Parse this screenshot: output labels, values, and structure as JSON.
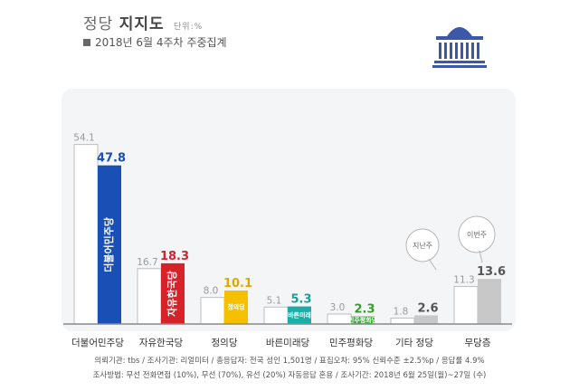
{
  "header": {
    "title_prefix": "정당",
    "title_main": "지지도",
    "unit": "단위:%",
    "subtitle": "2018년 6월 4주차 주중집계"
  },
  "footnotes": {
    "line1": "의뢰기관: tbs / 조사기관: 리얼미터 / 총응답자: 전국 성인 1,501명 / 표집오차: 95% 신뢰수준 ±2.5%p / 응답률 4.9%",
    "line2": "조사방법: 무선 전화면접 (10%), 무선 (70%), 유선 (20%) 자동응답 혼용 / 조사기간: 2018년 6월 25일(월)~27일 (수)"
  },
  "colors": {
    "prev": "#ffffff",
    "prev_border": "#bdbdbd",
    "label_prev": "#9a9a9a"
  },
  "chart_data": {
    "type": "bar",
    "categories": [
      "더불어민주당",
      "자유한국당",
      "정의당",
      "바른미래당",
      "민주평화당",
      "기타 정당",
      "무당층"
    ],
    "series": [
      {
        "values": [
          54.1,
          16.7,
          8.0,
          5.1,
          3.0,
          1.8,
          11.3
        ]
      },
      {
        "values": [
          47.8,
          18.3,
          10.1,
          5.3,
          2.3,
          2.6,
          13.6
        ],
        "colors": [
          "#1a4fb5",
          "#d6232a",
          "#f5c000",
          "#1aaea8",
          "#3cae3a",
          "#c8c8c8",
          "#c8c8c8"
        ],
        "label_colors": [
          "#1a4fb5",
          "#d6232a",
          "#e0a800",
          "#1a9e98",
          "#3a9a2f",
          "#555555",
          "#555555"
        ]
      }
    ],
    "bar_labels": [
      "더불어민주당",
      "자유한국당",
      "정의당",
      "바른미래",
      "민주평화당",
      "",
      ""
    ],
    "bubbles": [
      "지난주",
      "이번주"
    ],
    "ylim": [
      0,
      60
    ]
  }
}
